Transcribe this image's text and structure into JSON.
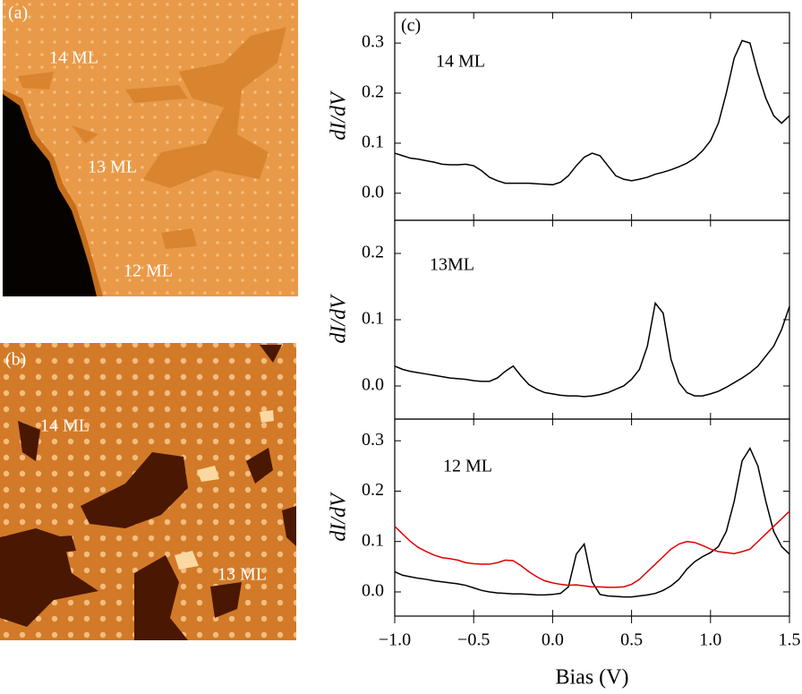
{
  "images": [
    {
      "label": "(a)",
      "annotations": [
        "14 ML",
        "13 ML",
        "12 ML"
      ]
    },
    {
      "label": "(b)",
      "annotations": [
        "14 ML",
        "13 ML"
      ]
    }
  ],
  "chart_data": [
    {
      "type": "line",
      "ylabel": "dI/dV",
      "annotations": [
        "(c)",
        "14 ML"
      ],
      "x": [
        -1.0,
        -0.95,
        -0.9,
        -0.85,
        -0.8,
        -0.75,
        -0.7,
        -0.65,
        -0.6,
        -0.55,
        -0.5,
        -0.45,
        -0.4,
        -0.35,
        -0.3,
        -0.25,
        -0.2,
        -0.15,
        -0.1,
        -0.05,
        0.0,
        0.05,
        0.1,
        0.15,
        0.2,
        0.25,
        0.3,
        0.35,
        0.4,
        0.45,
        0.5,
        0.55,
        0.6,
        0.65,
        0.7,
        0.75,
        0.8,
        0.85,
        0.9,
        0.95,
        1.0,
        1.05,
        1.1,
        1.15,
        1.2,
        1.25,
        1.3,
        1.35,
        1.4,
        1.45,
        1.5
      ],
      "series": [
        {
          "color": "#000000",
          "values": [
            0.08,
            0.075,
            0.07,
            0.068,
            0.065,
            0.062,
            0.058,
            0.057,
            0.057,
            0.058,
            0.055,
            0.045,
            0.032,
            0.025,
            0.02,
            0.02,
            0.02,
            0.02,
            0.019,
            0.018,
            0.017,
            0.022,
            0.035,
            0.055,
            0.072,
            0.08,
            0.075,
            0.055,
            0.035,
            0.028,
            0.025,
            0.028,
            0.032,
            0.038,
            0.042,
            0.047,
            0.053,
            0.06,
            0.07,
            0.085,
            0.105,
            0.14,
            0.2,
            0.27,
            0.305,
            0.3,
            0.24,
            0.19,
            0.155,
            0.14,
            0.155
          ]
        }
      ],
      "xlim": [
        -1.0,
        1.5
      ],
      "ylim": [
        -0.054,
        0.361
      ],
      "yticks": [
        {
          "value": 0,
          "label": "0.0"
        },
        0.1,
        0.2,
        0.3
      ]
    },
    {
      "type": "line",
      "ylabel": "dI/dV",
      "annotations": [
        "13ML"
      ],
      "x": [
        -1.0,
        -0.95,
        -0.9,
        -0.85,
        -0.8,
        -0.75,
        -0.7,
        -0.65,
        -0.6,
        -0.55,
        -0.5,
        -0.45,
        -0.4,
        -0.35,
        -0.3,
        -0.25,
        -0.2,
        -0.15,
        -0.1,
        -0.05,
        0.0,
        0.05,
        0.1,
        0.15,
        0.2,
        0.25,
        0.3,
        0.35,
        0.4,
        0.45,
        0.5,
        0.55,
        0.6,
        0.65,
        0.7,
        0.75,
        0.8,
        0.85,
        0.9,
        0.95,
        1.0,
        1.05,
        1.1,
        1.15,
        1.2,
        1.25,
        1.3,
        1.35,
        1.4,
        1.45,
        1.5
      ],
      "series": [
        {
          "color": "#000000",
          "values": [
            0.03,
            0.025,
            0.022,
            0.02,
            0.018,
            0.016,
            0.014,
            0.012,
            0.011,
            0.01,
            0.008,
            0.007,
            0.007,
            0.012,
            0.022,
            0.03,
            0.015,
            0.002,
            -0.005,
            -0.01,
            -0.012,
            -0.014,
            -0.015,
            -0.015,
            -0.016,
            -0.015,
            -0.013,
            -0.01,
            -0.005,
            0.0,
            0.01,
            0.025,
            0.06,
            0.125,
            0.11,
            0.04,
            0.005,
            -0.01,
            -0.015,
            -0.015,
            -0.012,
            -0.008,
            -0.002,
            0.005,
            0.012,
            0.02,
            0.03,
            0.045,
            0.06,
            0.085,
            0.12
          ]
        }
      ],
      "xlim": [
        -1.0,
        1.5
      ],
      "ylim": [
        -0.05,
        0.25
      ],
      "yticks": [
        {
          "value": 0,
          "label": "0.0"
        },
        0.1,
        0.2
      ]
    },
    {
      "type": "line",
      "ylabel": "dI/dV",
      "xlabel": "Bias (V)",
      "annotations": [
        "12 ML"
      ],
      "x": [
        -1.0,
        -0.95,
        -0.9,
        -0.85,
        -0.8,
        -0.75,
        -0.7,
        -0.65,
        -0.6,
        -0.55,
        -0.5,
        -0.45,
        -0.4,
        -0.35,
        -0.3,
        -0.25,
        -0.2,
        -0.15,
        -0.1,
        -0.05,
        0.0,
        0.05,
        0.1,
        0.15,
        0.2,
        0.25,
        0.3,
        0.35,
        0.4,
        0.45,
        0.5,
        0.55,
        0.6,
        0.65,
        0.7,
        0.75,
        0.8,
        0.85,
        0.9,
        0.95,
        1.0,
        1.05,
        1.1,
        1.15,
        1.2,
        1.25,
        1.3,
        1.35,
        1.4,
        1.45,
        1.5
      ],
      "series": [
        {
          "color": "#000000",
          "values": [
            0.04,
            0.033,
            0.03,
            0.027,
            0.025,
            0.022,
            0.02,
            0.018,
            0.016,
            0.013,
            0.008,
            0.003,
            0.0,
            -0.002,
            -0.003,
            -0.004,
            -0.004,
            -0.005,
            -0.006,
            -0.006,
            -0.005,
            -0.003,
            0.01,
            0.075,
            0.095,
            0.02,
            -0.005,
            -0.008,
            -0.009,
            -0.01,
            -0.01,
            -0.008,
            -0.006,
            -0.003,
            0.003,
            0.012,
            0.025,
            0.045,
            0.06,
            0.07,
            0.078,
            0.09,
            0.12,
            0.18,
            0.26,
            0.285,
            0.25,
            0.18,
            0.12,
            0.09,
            0.075
          ]
        },
        {
          "color": "#e00000",
          "values": [
            0.13,
            0.115,
            0.1,
            0.088,
            0.08,
            0.073,
            0.068,
            0.066,
            0.063,
            0.058,
            0.056,
            0.055,
            0.055,
            0.058,
            0.063,
            0.062,
            0.052,
            0.04,
            0.03,
            0.022,
            0.018,
            0.015,
            0.013,
            0.014,
            0.012,
            0.01,
            0.01,
            0.009,
            0.009,
            0.01,
            0.015,
            0.025,
            0.04,
            0.055,
            0.07,
            0.085,
            0.095,
            0.1,
            0.098,
            0.092,
            0.085,
            0.08,
            0.078,
            0.076,
            0.08,
            0.085,
            0.1,
            0.115,
            0.13,
            0.145,
            0.16
          ]
        }
      ],
      "xlim": [
        -1.0,
        1.5
      ],
      "ylim": [
        -0.048,
        0.343
      ],
      "xticks": [
        {
          "value": -1,
          "label": "−1.0"
        },
        {
          "value": -0.5,
          "label": "−0.5"
        },
        {
          "value": 0,
          "label": "0.0"
        },
        0.5,
        {
          "value": 1,
          "label": "1.0"
        },
        1.5
      ],
      "yticks": [
        {
          "value": 0,
          "label": "0.0"
        },
        0.1,
        0.2,
        0.3
      ]
    }
  ]
}
